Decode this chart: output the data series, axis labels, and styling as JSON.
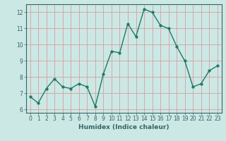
{
  "xlabel": "Humidex (Indice chaleur)",
  "ylabel": "",
  "x": [
    0,
    1,
    2,
    3,
    4,
    5,
    6,
    7,
    8,
    9,
    10,
    11,
    12,
    13,
    14,
    15,
    16,
    17,
    18,
    19,
    20,
    21,
    22,
    23
  ],
  "y": [
    6.8,
    6.4,
    7.3,
    7.9,
    7.4,
    7.3,
    7.6,
    7.4,
    6.2,
    8.2,
    9.6,
    9.5,
    11.3,
    10.5,
    12.2,
    12.0,
    11.2,
    11.0,
    9.9,
    9.0,
    7.4,
    7.6,
    8.4,
    8.7
  ],
  "line_color": "#1a7a6a",
  "marker_color": "#1a7a6a",
  "bg_color": "#cce8e4",
  "grid_color": "#d4a0a0",
  "ylim": [
    5.8,
    12.5
  ],
  "xlim": [
    -0.5,
    23.5
  ],
  "yticks": [
    6,
    7,
    8,
    9,
    10,
    11,
    12
  ],
  "xticks": [
    0,
    1,
    2,
    3,
    4,
    5,
    6,
    7,
    8,
    9,
    10,
    11,
    12,
    13,
    14,
    15,
    16,
    17,
    18,
    19,
    20,
    21,
    22,
    23
  ],
  "marker_size": 2.5,
  "line_width": 1.0,
  "tick_fontsize": 5.5,
  "label_fontsize": 6.5,
  "spine_color": "#336666"
}
